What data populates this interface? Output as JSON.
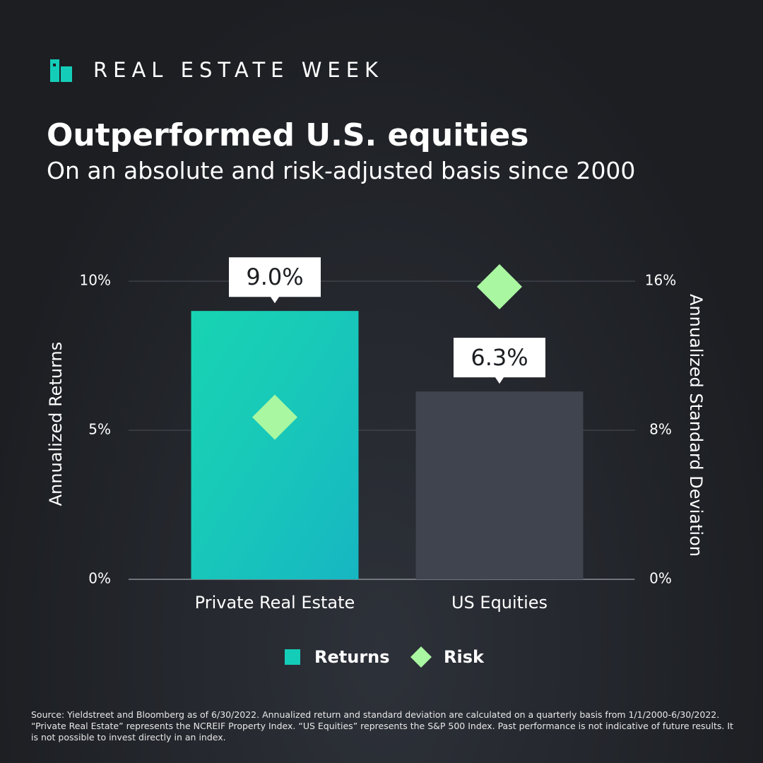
{
  "brand": "REAL ESTATE WEEK",
  "source": "Source: Yieldstreet and Bloomberg as of 6/30/2022. Annualized return and standard deviation are calculated on a quarterly basis from 1/1/2000-6/30/2022. “Private Real Estate” represents the NCREIF Property Index. “US Equities” represents the S&P 500 Index. Past performance is not indicative of future results. It is not possible to invest directly in an index.",
  "chart_data": {
    "type": "bar",
    "title": "Outperformed U.S. equities",
    "subtitle": "On an absolute and risk-adjusted basis since 2000",
    "y_label": "Annualized Returns",
    "y2_label": "Annualized Standard Deviation",
    "categories": [
      "Private Real Estate",
      "US Equities"
    ],
    "series": [
      {
        "name": "Returns",
        "type": "bar",
        "color": "#14cdb8",
        "bar_colors": [
          "#14cdb8",
          "#40444f"
        ],
        "values": [
          9.0,
          6.3
        ],
        "value_labels": [
          "9.0%",
          "6.3%"
        ]
      },
      {
        "name": "Risk",
        "type": "diamond",
        "color": "#a9f7a1",
        "axis": "y2",
        "values": [
          8.7,
          15.7
        ]
      }
    ],
    "ylim": [
      0,
      10
    ],
    "yticks": [
      {
        "value": 0,
        "label": "0%"
      },
      {
        "value": 5,
        "label": "5%"
      },
      {
        "value": 10,
        "label": "10%"
      }
    ],
    "y2lim": [
      0,
      16
    ],
    "y2ticks": [
      {
        "value": 0,
        "label": "0%"
      },
      {
        "value": 8,
        "label": "8%"
      },
      {
        "value": 16,
        "label": "16%"
      }
    ],
    "grid": true,
    "legend": "bottom"
  }
}
